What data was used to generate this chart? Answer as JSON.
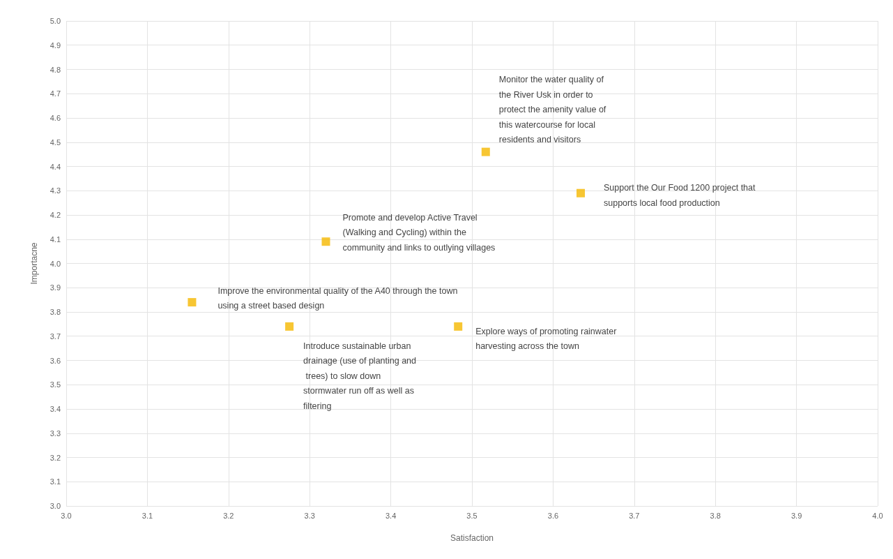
{
  "chart_data": {
    "type": "scatter",
    "xlabel": "Satisfaction",
    "ylabel": "Importacne",
    "x": [
      3.155,
      3.275,
      3.32,
      3.483,
      3.517,
      3.634
    ],
    "series": [
      {
        "color": "#f5b800",
        "values": [
          3.84,
          3.74,
          4.09,
          3.74,
          4.46,
          4.29
        ]
      }
    ],
    "marker": "square",
    "grid": true,
    "xlim": [
      3,
      4
    ],
    "xticks": [
      {
        "value": 3,
        "label": "3.0"
      },
      3.1,
      3.2,
      3.3,
      3.4,
      3.5,
      3.6,
      3.7,
      3.8,
      3.9,
      {
        "value": 4,
        "label": "4.0"
      }
    ],
    "ylim": [
      3,
      5
    ],
    "yticks": [
      {
        "value": 3,
        "label": "3.0"
      },
      3.1,
      3.2,
      3.3,
      3.4,
      3.5,
      3.6,
      3.7,
      3.8,
      3.9,
      {
        "value": 4,
        "label": "4.0"
      },
      4.1,
      4.2,
      4.3,
      4.4,
      4.5,
      4.6,
      4.7,
      4.8,
      4.9,
      {
        "value": 5,
        "label": "5.0"
      }
    ],
    "annotations": [
      {
        "text": "Improve the environmental quality of the A40 through the town using a street based design",
        "x": 3.155,
        "y": 3.84
      },
      {
        "text": "Introduce sustainable urban drainage (use of planting and trees) to slow down stormwater run off as well as filtering",
        "x": 3.275,
        "y": 3.74
      },
      {
        "text": "Promote and develop Active Travel (Walking and Cycling) within the community and links to outlying villages",
        "x": 3.32,
        "y": 4.09
      },
      {
        "text": "Explore ways of promoting rainwater harvesting across the town",
        "x": 3.483,
        "y": 3.74
      },
      {
        "text": "Monitor the water quality of the River Usk in order to protect the amenity value of this watercourse for local residents and visitors",
        "x": 3.517,
        "y": 4.46
      },
      {
        "text": "Support the Our Food 1200 project that supports local food production",
        "x": 3.634,
        "y": 4.29
      }
    ]
  }
}
